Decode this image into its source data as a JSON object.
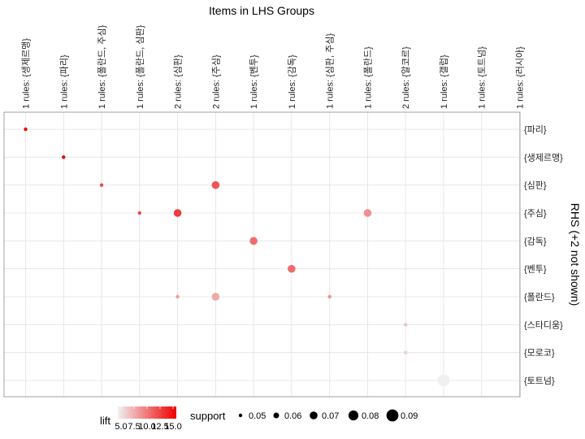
{
  "chart_data": {
    "type": "scatter",
    "title": "Items in LHS Groups",
    "ylabel_right": "RHS (+2 not shown)",
    "x_categories": [
      "1 rules: {생제르맹}",
      "1 rules: {파리}",
      "1 rules: {폴란드, 주심}",
      "1 rules: {폴란드, 심판}",
      "2 rules: {심판}",
      "2 rules: {주심}",
      "1 rules: {벤투}",
      "1 rules: {감독}",
      "1 rules: {심판, 주심}",
      "1 rules: {폴란드}",
      "2 rules: {알코르}",
      "1 rules: {갤럽}",
      "1 rules: {토트넘}",
      "1 rules: {러시아}"
    ],
    "y_categories": [
      "{파리}",
      "{생제르맹}",
      "{심판}",
      "{주심}",
      "{감독}",
      "{벤투}",
      "{폴란드}",
      "{스타디움}",
      "{모로코}",
      "{토트넘}"
    ],
    "points": [
      {
        "x": "1 rules: {생제르맹}",
        "y": "{파리}",
        "support": 0.05,
        "lift": 15.0
      },
      {
        "x": "1 rules: {파리}",
        "y": "{생제르맹}",
        "support": 0.05,
        "lift": 15.0
      },
      {
        "x": "1 rules: {폴란드, 주심}",
        "y": "{심판}",
        "support": 0.05,
        "lift": 12.0
      },
      {
        "x": "2 rules: {주심}",
        "y": "{심판}",
        "support": 0.07,
        "lift": 11.5
      },
      {
        "x": "1 rules: {폴란드, 심판}",
        "y": "{주심}",
        "support": 0.05,
        "lift": 12.0
      },
      {
        "x": "2 rules: {심판}",
        "y": "{주심}",
        "support": 0.07,
        "lift": 12.5
      },
      {
        "x": "1 rules: {폴란드}",
        "y": "{주심}",
        "support": 0.07,
        "lift": 9.0
      },
      {
        "x": "1 rules: {벤투}",
        "y": "{감독}",
        "support": 0.07,
        "lift": 10.5
      },
      {
        "x": "1 rules: {감독}",
        "y": "{벤투}",
        "support": 0.07,
        "lift": 10.5
      },
      {
        "x": "2 rules: {심판}",
        "y": "{폴란드}",
        "support": 0.05,
        "lift": 8.5
      },
      {
        "x": "2 rules: {주심}",
        "y": "{폴란드}",
        "support": 0.07,
        "lift": 8.0
      },
      {
        "x": "1 rules: {심판, 주심}",
        "y": "{폴란드}",
        "support": 0.05,
        "lift": 9.0
      },
      {
        "x": "2 rules: {알코르}",
        "y": "{스타디움}",
        "support": 0.05,
        "lift": 7.0
      },
      {
        "x": "2 rules: {알코르}",
        "y": "{모로코}",
        "support": 0.05,
        "lift": 6.5
      },
      {
        "x": "1 rules: {갤럽}",
        "y": "{토트넘}",
        "support": 0.09,
        "lift": 5.0
      }
    ],
    "lift_legend": {
      "title": "lift",
      "min": 5.0,
      "max": 15.0,
      "ticks": [
        "5.0",
        "7.5",
        "10.0",
        "12.5",
        "15.0"
      ],
      "color_low": "#f0f0f0",
      "color_high": "#ee0000"
    },
    "support_legend": {
      "title": "support",
      "values": [
        0.05,
        0.06,
        0.07,
        0.08,
        0.09
      ],
      "labels": [
        "0.05",
        "0.06",
        "0.07",
        "0.08",
        "0.09"
      ]
    },
    "grid": true
  }
}
